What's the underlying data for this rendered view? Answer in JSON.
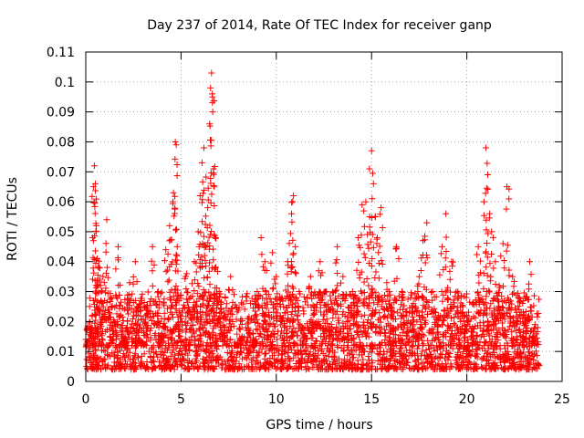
{
  "chart_data": {
    "type": "scatter",
    "title": "Day 237 of 2014, Rate Of TEC Index for receiver ganp",
    "xlabel": "GPS time / hours",
    "ylabel": "ROTI / TECUs",
    "xlim": [
      0,
      25
    ],
    "ylim": [
      0,
      0.11
    ],
    "xticks": [
      0,
      5,
      10,
      15,
      20,
      25
    ],
    "yticks": [
      0,
      0.01,
      0.02,
      0.03,
      0.04,
      0.05,
      0.06,
      0.07,
      0.08,
      0.09,
      0.1,
      0.11
    ],
    "grid": true,
    "legend": "none",
    "marker": "+",
    "series": [
      {
        "name": "ROTI",
        "color": "#ff0000",
        "x": [
          0.0,
          0.3,
          0.4,
          0.45,
          0.5,
          0.55,
          0.6,
          0.7,
          0.9,
          1.1,
          1.3,
          1.5,
          1.7,
          2.0,
          2.1,
          2.3,
          2.6,
          2.7,
          3.0,
          3.2,
          3.5,
          3.8,
          4.0,
          4.2,
          4.4,
          4.6,
          4.7,
          4.75,
          4.8,
          5.0,
          5.3,
          5.5,
          5.7,
          5.9,
          6.0,
          6.1,
          6.2,
          6.3,
          6.4,
          6.5,
          6.55,
          6.6,
          6.65,
          6.7,
          6.8,
          7.0,
          7.3,
          7.6,
          7.9,
          8.2,
          8.5,
          8.8,
          9.0,
          9.2,
          9.4,
          9.6,
          9.8,
          10.0,
          10.3,
          10.6,
          10.8,
          10.9,
          11.0,
          11.2,
          11.5,
          11.8,
          12.0,
          12.3,
          12.6,
          12.9,
          13.2,
          13.5,
          13.8,
          14.0,
          14.3,
          14.5,
          14.7,
          14.9,
          15.0,
          15.1,
          15.3,
          15.5,
          15.8,
          16.0,
          16.3,
          16.6,
          16.9,
          17.2,
          17.5,
          17.7,
          17.9,
          18.2,
          18.5,
          18.7,
          18.9,
          19.2,
          19.5,
          19.8,
          20.0,
          20.3,
          20.6,
          20.9,
          21.0,
          21.1,
          21.3,
          21.5,
          21.7,
          21.9,
          22.1,
          22.4,
          22.7,
          23.0,
          23.3,
          23.6
        ],
        "y": [
          0.014,
          0.018,
          0.065,
          0.072,
          0.066,
          0.052,
          0.041,
          0.038,
          0.035,
          0.054,
          0.028,
          0.02,
          0.045,
          0.015,
          0.012,
          0.033,
          0.04,
          0.019,
          0.013,
          0.025,
          0.045,
          0.03,
          0.016,
          0.044,
          0.052,
          0.063,
          0.08,
          0.079,
          0.045,
          0.021,
          0.036,
          0.028,
          0.04,
          0.05,
          0.062,
          0.073,
          0.078,
          0.045,
          0.058,
          0.086,
          0.098,
          0.103,
          0.095,
          0.071,
          0.048,
          0.03,
          0.018,
          0.035,
          0.012,
          0.015,
          0.021,
          0.014,
          0.03,
          0.048,
          0.04,
          0.022,
          0.043,
          0.035,
          0.028,
          0.04,
          0.056,
          0.062,
          0.045,
          0.03,
          0.018,
          0.035,
          0.025,
          0.04,
          0.03,
          0.018,
          0.045,
          0.035,
          0.023,
          0.03,
          0.048,
          0.059,
          0.06,
          0.055,
          0.077,
          0.066,
          0.048,
          0.058,
          0.033,
          0.025,
          0.045,
          0.03,
          0.018,
          0.026,
          0.035,
          0.047,
          0.053,
          0.03,
          0.022,
          0.045,
          0.056,
          0.04,
          0.03,
          0.025,
          0.022,
          0.018,
          0.045,
          0.06,
          0.078,
          0.069,
          0.05,
          0.04,
          0.032,
          0.046,
          0.065,
          0.035,
          0.028,
          0.022,
          0.04,
          0.018
        ]
      }
    ],
    "noise_bands": [
      {
        "x_from": 0.0,
        "x_to": 23.8,
        "y_low": 0.004,
        "y_high": 0.03
      }
    ]
  }
}
